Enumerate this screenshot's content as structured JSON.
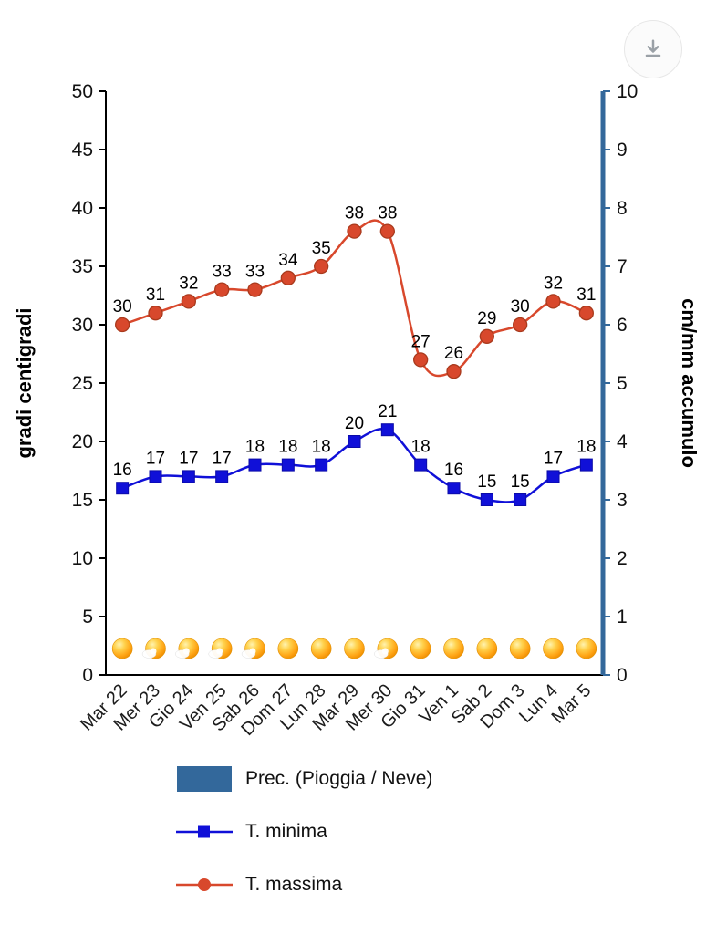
{
  "header": {
    "download_icon": "download-icon"
  },
  "chart_data": {
    "type": "line",
    "title": "",
    "categories": [
      "Mar 22",
      "Mer 23",
      "Gio 24",
      "Ven 25",
      "Sab 26",
      "Dom 27",
      "Lun 28",
      "Mar 29",
      "Mer 30",
      "Gio 31",
      "Ven 1",
      "Sab 2",
      "Dom 3",
      "Lun 4",
      "Mar 5"
    ],
    "series": [
      {
        "name": "T. massima",
        "marker": "circle",
        "color": "#d8482c",
        "marker_stroke": "#a93a1d",
        "axis": "left",
        "values": [
          30,
          31,
          32,
          33,
          33,
          34,
          35,
          38,
          38,
          27,
          26,
          29,
          30,
          32,
          31
        ]
      },
      {
        "name": "T. minima",
        "marker": "square",
        "color": "#1010d8",
        "marker_stroke": "#0b0ba8",
        "axis": "left",
        "values": [
          16,
          17,
          17,
          17,
          18,
          18,
          18,
          20,
          21,
          18,
          16,
          15,
          15,
          17,
          18
        ]
      }
    ],
    "precipitation_series": {
      "name": "Prec. (Pioggia / Neve)",
      "color": "#33689b",
      "values": [
        0,
        0,
        0,
        0,
        0,
        0,
        0,
        0,
        0,
        0,
        0,
        0,
        0,
        0,
        0
      ]
    },
    "weather_icons": [
      "sun",
      "sun-cloud",
      "sun-cloud",
      "sun-cloud",
      "sun-cloud",
      "sun",
      "sun",
      "sun",
      "sun-cloud",
      "sun",
      "sun",
      "sun",
      "sun",
      "sun",
      "sun"
    ],
    "left_axis": {
      "label": "gradi centigradi",
      "min": 0,
      "max": 50,
      "step": 5,
      "color": "#000000"
    },
    "right_axis": {
      "label": "cm/mm accumulo",
      "min": 0,
      "max": 10,
      "step": 1,
      "color": "#33689b"
    },
    "grid": false,
    "legend_position": "bottom"
  },
  "legend": {
    "items": [
      {
        "label": "Prec. (Pioggia / Neve)",
        "swatch": "rect",
        "color": "#33689b"
      },
      {
        "label": "T. minima",
        "swatch": "line-square",
        "color": "#1010d8"
      },
      {
        "label": "T. massima",
        "swatch": "line-circle",
        "color": "#d8482c"
      }
    ]
  }
}
